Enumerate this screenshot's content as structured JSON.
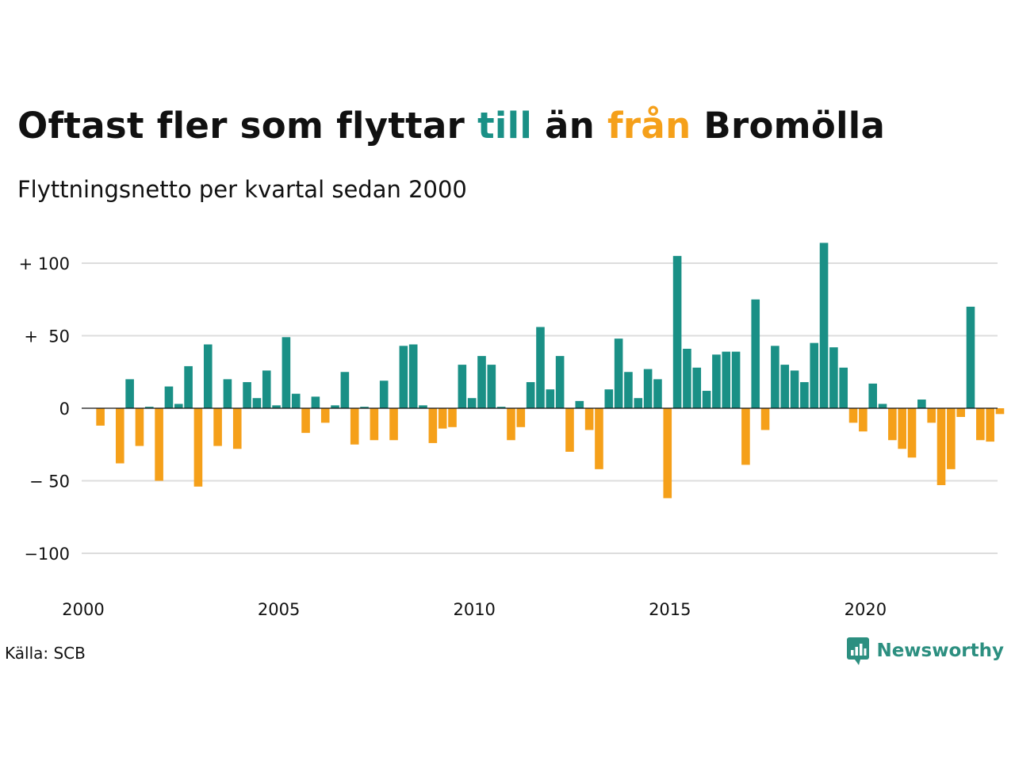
{
  "title": {
    "part1": "Oftast fler som flyttar ",
    "highlight_to": "till",
    "part2": " än ",
    "highlight_from": "från",
    "part3": " Bromölla"
  },
  "subtitle": "Flyttningsnetto per kvartal sedan 2000",
  "source": "Källa: SCB",
  "brand": "Newsworthy",
  "colors": {
    "positive": "#1a9086",
    "negative": "#f5a01a",
    "grid": "#dddddd",
    "text": "#111111"
  },
  "chart_data": {
    "type": "bar",
    "x_start": 2000,
    "periods_per_year": 4,
    "ylim": [
      -120,
      120
    ],
    "y_ticks": [
      {
        "value": 100,
        "label": "+ 100"
      },
      {
        "value": 50,
        "label": "+  50"
      },
      {
        "value": 0,
        "label": "0"
      },
      {
        "value": -50,
        "label": "− 50"
      },
      {
        "value": -100,
        "label": "−100"
      }
    ],
    "x_ticks": [
      {
        "value": 2000,
        "label": "2000"
      },
      {
        "value": 2005,
        "label": "2005"
      },
      {
        "value": 2010,
        "label": "2010"
      },
      {
        "value": 2015,
        "label": "2015"
      },
      {
        "value": 2020,
        "label": "2020"
      }
    ],
    "grid": true,
    "values": [
      0,
      -12,
      0,
      -38,
      20,
      -26,
      1,
      -50,
      15,
      3,
      29,
      -54,
      44,
      -26,
      20,
      -28,
      18,
      7,
      26,
      2,
      49,
      10,
      -17,
      8,
      -10,
      2,
      25,
      -25,
      1,
      -22,
      19,
      -22,
      43,
      44,
      2,
      -24,
      -14,
      -13,
      30,
      7,
      36,
      30,
      1,
      -22,
      -13,
      18,
      56,
      13,
      36,
      -30,
      5,
      -15,
      -42,
      13,
      48,
      25,
      7,
      27,
      20,
      -62,
      105,
      41,
      28,
      12,
      37,
      39,
      39,
      -39,
      75,
      -15,
      43,
      30,
      26,
      18,
      45,
      114,
      42,
      28,
      -10,
      -16,
      17,
      3,
      -22,
      -28,
      -34,
      6,
      -10,
      -53,
      -42,
      -6,
      70,
      -22,
      -23,
      -4
    ]
  }
}
